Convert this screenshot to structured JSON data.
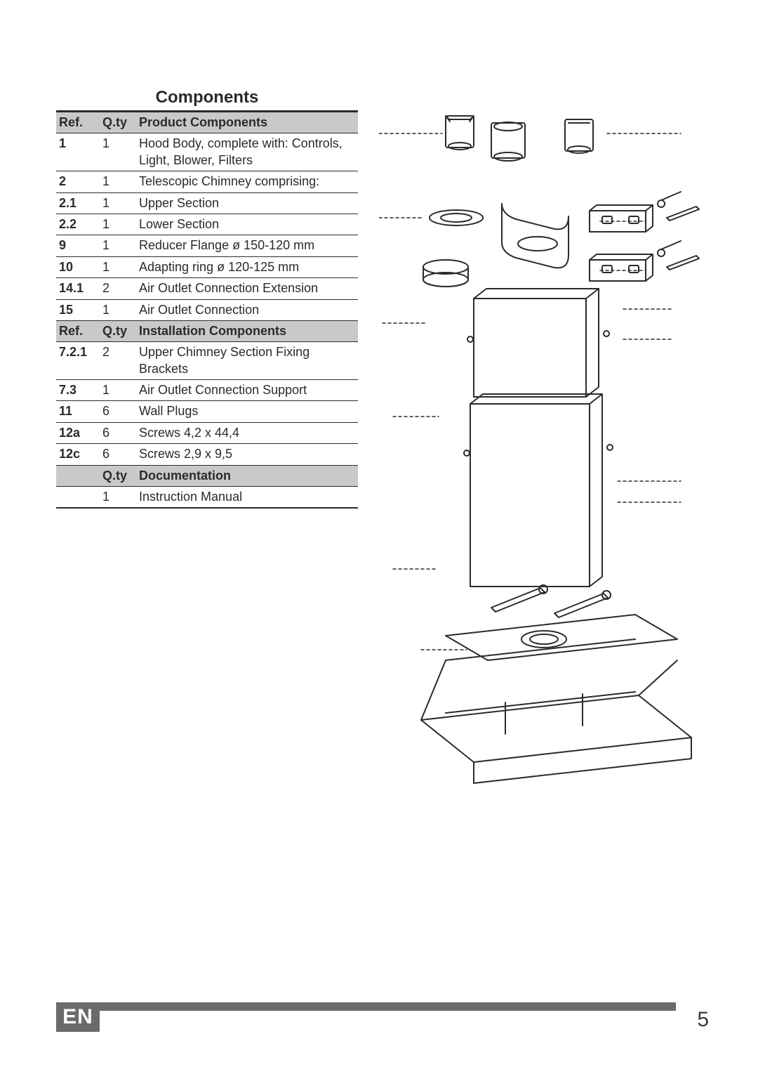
{
  "title": "Components",
  "footer": {
    "lang": "EN",
    "page": "5"
  },
  "colors": {
    "text": "#2b2b2b",
    "header_bg": "#c9c9c9",
    "footer_bg": "#6b6b6b",
    "footer_text": "#ffffff",
    "diagram_stroke": "#2b2b2b",
    "diagram_fill_light": "#ffffff",
    "diagram_fill_shade": "#d0d0d0"
  },
  "table": {
    "sections": [
      {
        "header": {
          "col1": "Ref.",
          "col2": "Q.ty",
          "col3": "Product Components"
        },
        "rows": [
          {
            "ref": "1",
            "qty": "1",
            "desc": "Hood Body, complete with: Controls, Light, Blower, Filters"
          },
          {
            "ref": "2",
            "qty": "1",
            "desc": "Telescopic Chimney comprising:"
          },
          {
            "ref": "2.1",
            "qty": "1",
            "desc": "Upper Section"
          },
          {
            "ref": "2.2",
            "qty": "1",
            "desc": "Lower Section"
          },
          {
            "ref": "9",
            "qty": "1",
            "desc": "Reducer Flange ø 150-120 mm"
          },
          {
            "ref": "10",
            "qty": "1",
            "desc": "Adapting ring ø 120-125 mm"
          },
          {
            "ref": "14.1",
            "qty": "2",
            "desc": "Air Outlet Connection Extension"
          },
          {
            "ref": "15",
            "qty": "1",
            "desc": "Air Outlet Connection"
          }
        ]
      },
      {
        "header": {
          "col1": "Ref.",
          "col2": "Q.ty",
          "col3": "Installation Components"
        },
        "rows": [
          {
            "ref": "7.2.1",
            "qty": "2",
            "desc": "Upper Chimney Section Fixing Brackets"
          },
          {
            "ref": "7.3",
            "qty": "1",
            "desc": "Air Outlet Connection Support"
          },
          {
            "ref": "11",
            "qty": "6",
            "desc": "Wall Plugs"
          },
          {
            "ref": "12a",
            "qty": "6",
            "desc": "Screws 4,2 x 44,4"
          },
          {
            "ref": "12c",
            "qty": "6",
            "desc": "Screws 2,9 x 9,5"
          }
        ]
      },
      {
        "header": {
          "col1": "",
          "col2": "Q.ty",
          "col3": "Documentation"
        },
        "rows": [
          {
            "ref": "",
            "qty": "1",
            "desc": "Instruction Manual"
          }
        ]
      }
    ]
  },
  "diagram": {
    "type": "exploded-view-line-drawing",
    "description": "Line art exploded view of cooker hood assembly with chimney sections, brackets, flanges, screws, plugs and hood body.",
    "stroke_color": "#2b2b2b",
    "background": "#ffffff",
    "guide_dash": "4 4",
    "elements": [
      "air-outlet-extensions (top, 3 box-like ducts)",
      "reducer-flange (flat ring)",
      "adapting-ring (short cylinder)",
      "air-outlet-support (bracket shape)",
      "fixing-brackets ×2 (right side, with screws + plugs)",
      "upper-chimney-section",
      "lower-chimney-section",
      "long screws ×2",
      "hood-body with angled panel and blower opening"
    ]
  }
}
